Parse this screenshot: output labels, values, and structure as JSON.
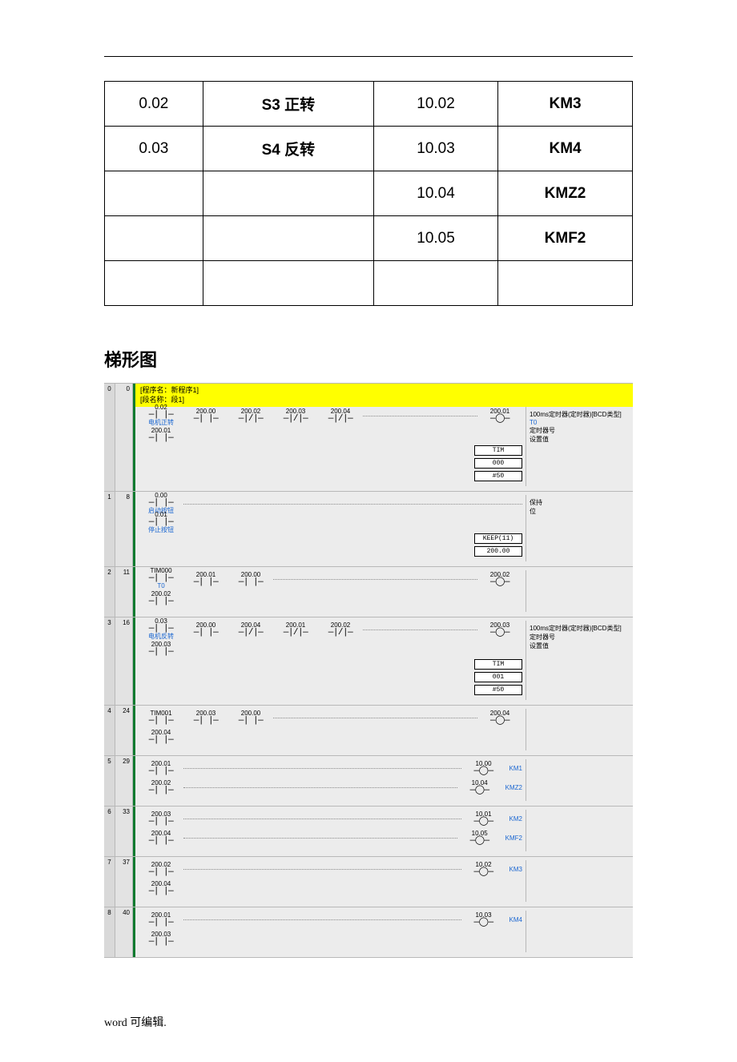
{
  "colors": {
    "highlight": "#ffff00",
    "rail": "#0b7a2f",
    "link": "#1a66d1",
    "grid_bg": "#ececec",
    "gutter": "#d9d9d9",
    "border": "#b8b8b8"
  },
  "io_table": {
    "columns": 4,
    "rows": [
      {
        "c0": "0.02",
        "c1": "S3 正转",
        "c1_bold": true,
        "c2": "10.02",
        "c3": "KM3",
        "c3_bold": true
      },
      {
        "c0": "0.03",
        "c1": "S4 反转",
        "c1_bold": true,
        "c2": "10.03",
        "c3": "KM4",
        "c3_bold": true
      },
      {
        "c0": "",
        "c1": "",
        "c1_bold": false,
        "c2": "10.04",
        "c3": "KMZ2",
        "c3_bold": true
      },
      {
        "c0": "",
        "c1": "",
        "c1_bold": false,
        "c2": "10.05",
        "c3": "KMF2",
        "c3_bold": true
      },
      {
        "c0": "",
        "c1": "",
        "c1_bold": false,
        "c2": "",
        "c3": "",
        "c3_bold": false
      }
    ]
  },
  "heading": "梯形图",
  "ladder": {
    "header": {
      "line1": "[程序名：新程序1]",
      "line2": "[段名称：段1]"
    },
    "timer_desc": "100ms定时器(定时器)[BCD类型]",
    "timer_no_label": "定时器号",
    "set_val_label": "设置值",
    "keep_label": "保持",
    "bit_label": "位",
    "t0_label": "T0",
    "rungs": [
      {
        "idx": "0",
        "step": "0",
        "rows": [
          [
            {
              "t": "no",
              "addr": "0.02",
              "lbl": "电机正转"
            },
            {
              "t": "no",
              "addr": "200.00"
            },
            {
              "t": "nc",
              "addr": "200.02"
            },
            {
              "t": "nc",
              "addr": "200.03"
            },
            {
              "t": "nc",
              "addr": "200.04"
            },
            {
              "t": "grow"
            },
            {
              "t": "coil",
              "addr": "200.01"
            }
          ],
          [
            {
              "t": "no",
              "addr": "200.01"
            }
          ]
        ],
        "instr": [
          "TIM",
          "000",
          "#50"
        ],
        "right": [
          {
            "txt": "100ms定时器(定时器)[BCD类型]"
          },
          {
            "txt": "T0",
            "blue": true
          },
          {
            "txt": "定时器号"
          },
          {
            "txt": "设置值"
          }
        ]
      },
      {
        "idx": "1",
        "step": "8",
        "rows": [
          [
            {
              "t": "no",
              "addr": "0.00",
              "lbl": "启动按钮"
            },
            {
              "t": "grow"
            }
          ],
          [
            {
              "t": "no",
              "addr": "0.01",
              "lbl": "停止按钮"
            }
          ]
        ],
        "instr": [
          "KEEP(11)",
          "200.00"
        ],
        "right": [
          {
            "txt": "保持"
          },
          {
            "txt": "位"
          }
        ]
      },
      {
        "idx": "2",
        "step": "11",
        "rows": [
          [
            {
              "t": "no",
              "addr": "TIM000",
              "lbl": "T0"
            },
            {
              "t": "no",
              "addr": "200.01"
            },
            {
              "t": "no",
              "addr": "200.00"
            },
            {
              "t": "grow"
            },
            {
              "t": "coil",
              "addr": "200.02"
            }
          ],
          [
            {
              "t": "no",
              "addr": "200.02"
            }
          ]
        ],
        "right": []
      },
      {
        "idx": "3",
        "step": "16",
        "rows": [
          [
            {
              "t": "no",
              "addr": "0.03",
              "lbl": "电机反转"
            },
            {
              "t": "no",
              "addr": "200.00"
            },
            {
              "t": "nc",
              "addr": "200.04"
            },
            {
              "t": "nc",
              "addr": "200.01"
            },
            {
              "t": "nc",
              "addr": "200.02"
            },
            {
              "t": "grow"
            },
            {
              "t": "coil",
              "addr": "200.03"
            }
          ],
          [
            {
              "t": "no",
              "addr": "200.03"
            }
          ]
        ],
        "instr": [
          "TIM",
          "001",
          "#50"
        ],
        "right": [
          {
            "txt": "100ms定时器(定时器)[BCD类型]"
          },
          {
            "txt": "定时器号"
          },
          {
            "txt": "设置值"
          }
        ]
      },
      {
        "idx": "4",
        "step": "24",
        "rows": [
          [
            {
              "t": "no",
              "addr": "TIM001"
            },
            {
              "t": "no",
              "addr": "200.03"
            },
            {
              "t": "no",
              "addr": "200.00"
            },
            {
              "t": "grow"
            },
            {
              "t": "coil",
              "addr": "200.04"
            }
          ],
          [
            {
              "t": "no",
              "addr": "200.04"
            }
          ]
        ],
        "right": []
      },
      {
        "idx": "5",
        "step": "29",
        "rows": [
          [
            {
              "t": "no",
              "addr": "200.01"
            },
            {
              "t": "grow"
            },
            {
              "t": "coil",
              "addr": "10.00",
              "clabel": "KM1"
            }
          ],
          [
            {
              "t": "no",
              "addr": "200.02"
            },
            {
              "t": "grow"
            },
            {
              "t": "coil",
              "addr": "10.04",
              "clabel": "KMZ2"
            }
          ]
        ],
        "right": []
      },
      {
        "idx": "6",
        "step": "33",
        "rows": [
          [
            {
              "t": "no",
              "addr": "200.03"
            },
            {
              "t": "grow"
            },
            {
              "t": "coil",
              "addr": "10.01",
              "clabel": "KM2"
            }
          ],
          [
            {
              "t": "no",
              "addr": "200.04"
            },
            {
              "t": "grow"
            },
            {
              "t": "coil",
              "addr": "10.05",
              "clabel": "KMF2"
            }
          ]
        ],
        "right": []
      },
      {
        "idx": "7",
        "step": "37",
        "rows": [
          [
            {
              "t": "no",
              "addr": "200.02"
            },
            {
              "t": "grow"
            },
            {
              "t": "coil",
              "addr": "10.02",
              "clabel": "KM3"
            }
          ],
          [
            {
              "t": "no",
              "addr": "200.04"
            }
          ]
        ],
        "right": []
      },
      {
        "idx": "8",
        "step": "40",
        "rows": [
          [
            {
              "t": "no",
              "addr": "200.01"
            },
            {
              "t": "grow"
            },
            {
              "t": "coil",
              "addr": "10.03",
              "clabel": "KM4"
            }
          ],
          [
            {
              "t": "no",
              "addr": "200.03"
            }
          ]
        ],
        "right": []
      }
    ]
  },
  "footer": "word  可编辑."
}
